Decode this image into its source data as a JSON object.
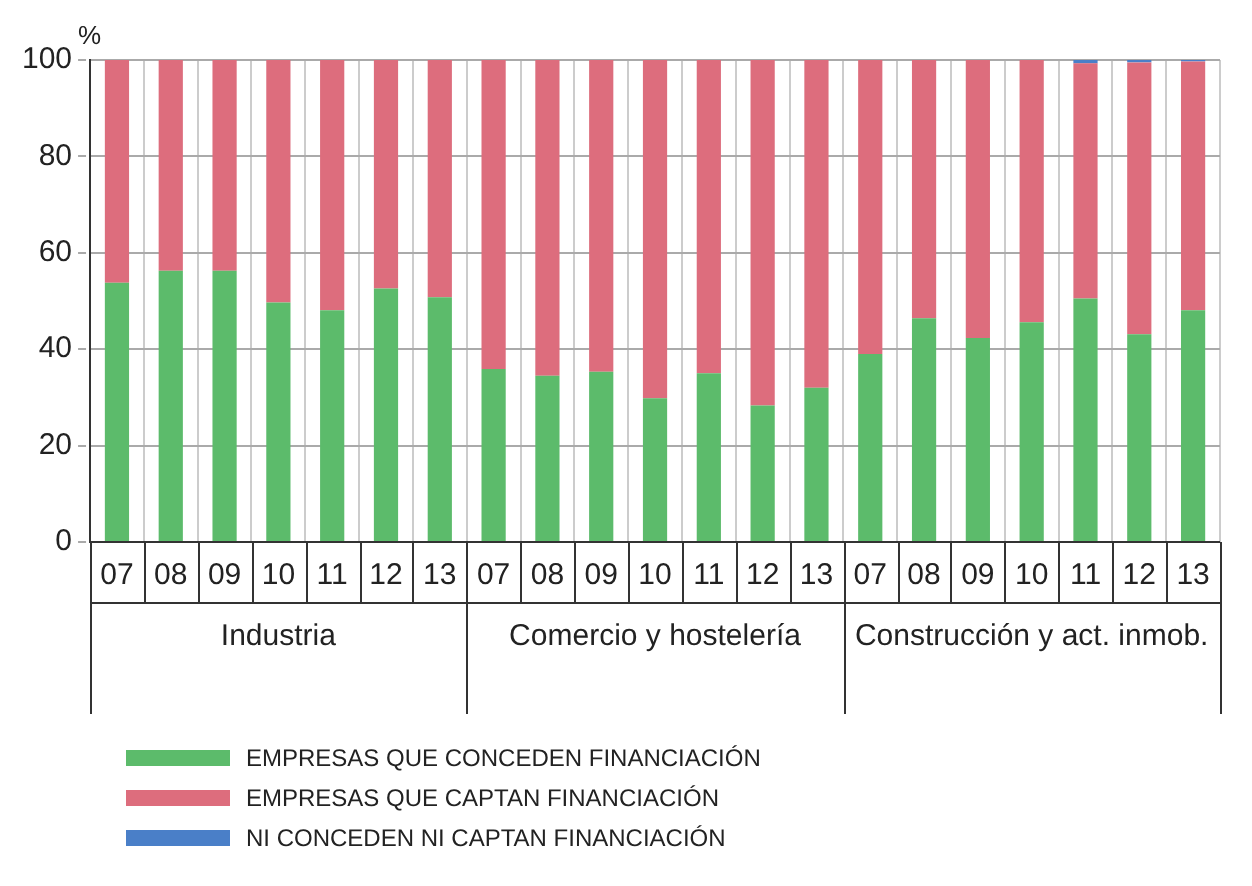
{
  "chart_data": {
    "type": "bar",
    "stacked": true,
    "ylabel": "%",
    "categories": [
      "07",
      "08",
      "09",
      "10",
      "11",
      "12",
      "13",
      "07",
      "08",
      "09",
      "10",
      "11",
      "12",
      "13",
      "07",
      "08",
      "09",
      "10",
      "11",
      "12",
      "13"
    ],
    "series": [
      {
        "name": "EMPRESAS QUE CONCEDEN FINANCIACIÓN",
        "color": "#5cbb6b",
        "values": [
          53.8,
          56.3,
          56.3,
          49.7,
          48.1,
          52.6,
          50.8,
          35.9,
          34.5,
          35.3,
          29.8,
          35.0,
          28.3,
          32.0,
          39.0,
          46.4,
          42.3,
          45.6,
          50.5,
          43.1,
          48.1
        ]
      },
      {
        "name": "EMPRESAS QUE CAPTAN FINANCIACIÓN",
        "color": "#dd6d7d",
        "values": [
          46.2,
          43.7,
          43.7,
          50.3,
          51.9,
          47.4,
          49.2,
          64.1,
          65.5,
          64.7,
          70.2,
          65.0,
          71.7,
          68.0,
          61.0,
          53.6,
          57.7,
          54.4,
          48.8,
          56.4,
          51.6
        ]
      },
      {
        "name": "NI CONCEDEN NI CAPTAN FINANCIACIÓN",
        "color": "#4a7fc8",
        "values": [
          0,
          0,
          0,
          0,
          0,
          0,
          0,
          0,
          0,
          0,
          0,
          0,
          0,
          0,
          0,
          0,
          0,
          0,
          0.7,
          0.5,
          0.3
        ]
      }
    ],
    "ylim": [
      0,
      100
    ],
    "yticks": [
      0,
      20,
      40,
      60,
      80,
      100
    ],
    "grid": true,
    "legend": "bottom",
    "annotations": [
      "Industria",
      "Comercio y hostelería",
      "Construcción y act. inmob."
    ]
  }
}
